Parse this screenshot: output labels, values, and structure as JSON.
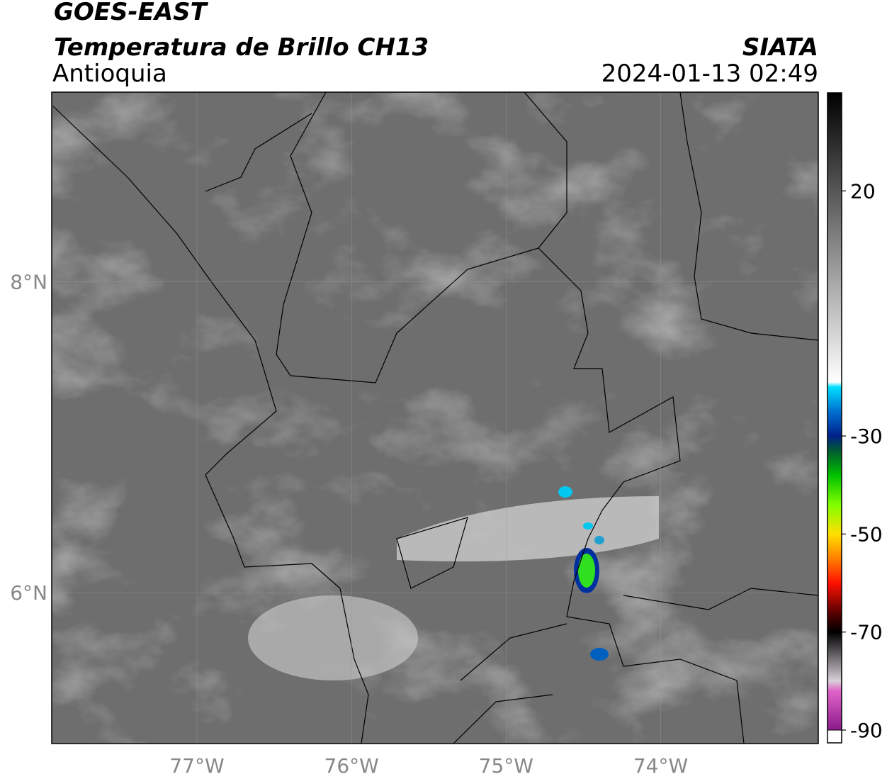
{
  "header": {
    "satellite": "GOES-EAST",
    "product": "Temperatura de Brillo CH13",
    "region": "Antioquia",
    "agency": "SIATA",
    "datetime": "2024-01-13 02:49"
  },
  "map": {
    "xlim": [
      -77.94,
      -72.98
    ],
    "ylim": [
      5.03,
      9.22
    ],
    "xticks": [
      {
        "value": -77,
        "label": "77°W"
      },
      {
        "value": -76,
        "label": "76°W"
      },
      {
        "value": -75,
        "label": "75°W"
      },
      {
        "value": -74,
        "label": "74°W"
      }
    ],
    "yticks": [
      {
        "value": 6,
        "label": "6°N"
      },
      {
        "value": 8,
        "label": "8°N"
      }
    ],
    "grid": true
  },
  "colorbar": {
    "lim": [
      -90,
      40
    ],
    "ticks": [
      20,
      -30,
      -50,
      -70,
      -90
    ],
    "under_color": "#ffffff",
    "stops": [
      {
        "value": -90,
        "color": "#8a1a8a"
      },
      {
        "value": -82,
        "color": "#e064c8"
      },
      {
        "value": -80,
        "color": "#d8d0d8"
      },
      {
        "value": -70,
        "color": "#000000"
      },
      {
        "value": -66,
        "color": "#5a0000"
      },
      {
        "value": -60,
        "color": "#ff1000"
      },
      {
        "value": -55,
        "color": "#ff8000"
      },
      {
        "value": -50,
        "color": "#ffe000"
      },
      {
        "value": -44,
        "color": "#80ff00"
      },
      {
        "value": -38,
        "color": "#00c000"
      },
      {
        "value": -33,
        "color": "#005a30"
      },
      {
        "value": -30,
        "color": "#00208a"
      },
      {
        "value": -25,
        "color": "#0070d0"
      },
      {
        "value": -20,
        "color": "#00e0ff"
      },
      {
        "value": -19,
        "color": "#ffffff"
      },
      {
        "value": 40,
        "color": "#000000"
      }
    ]
  }
}
